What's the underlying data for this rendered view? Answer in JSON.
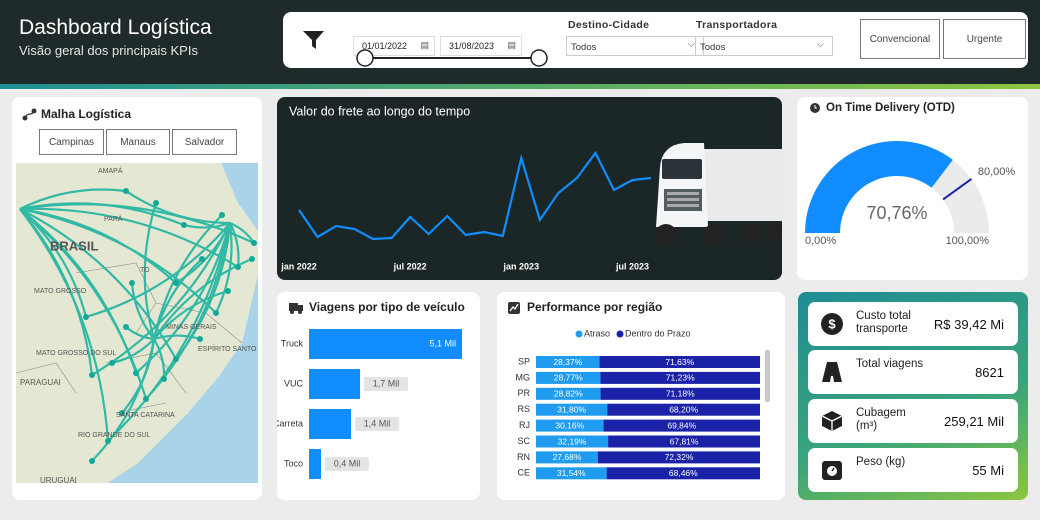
{
  "header": {
    "title": "Dashboard Logística",
    "subtitle": "Visão geral dos principais KPIs"
  },
  "filters": {
    "date_start": "01/01/2022",
    "date_end": "31/08/2023",
    "destino_label": "Destino-Cidade",
    "destino_value": "Todos",
    "transportadora_label": "Transportadora",
    "transportadora_value": "Todos",
    "buttons": [
      "Convencional",
      "Urgente"
    ]
  },
  "map": {
    "title": "Malha Logística",
    "buttons": [
      "Campinas",
      "Manaus",
      "Salvador"
    ],
    "labels": [
      "AMAPÁ",
      "PARÁ",
      "BRASIL",
      "TO",
      "MATO GROSSO",
      "MINAS GERAIS",
      "ESPÍRITO SANTO",
      "MATO GROSSO DO SUL",
      "PARAGUAI",
      "SANTA CATARINA",
      "RIO GRANDE DO SUL",
      "URUGUAI"
    ]
  },
  "chart_data": [
    {
      "type": "line",
      "title": "Valor do frete ao longo do tempo",
      "color": "#118dff",
      "categories": [
        "jan 2022",
        null,
        null,
        null,
        null,
        null,
        "jul 2022",
        null,
        null,
        null,
        null,
        null,
        "jan 2023",
        null,
        null,
        null,
        null,
        null,
        "jul 2023",
        null
      ],
      "values": [
        70,
        43,
        54,
        51,
        41,
        42,
        63,
        46,
        64,
        45,
        48,
        44,
        122,
        60,
        87,
        102,
        127,
        90,
        100,
        102
      ]
    },
    {
      "type": "bar",
      "title": "Viagens por tipo de veículo",
      "color": "#118dff",
      "orientation": "horizontal",
      "categories": [
        "Truck",
        "VUC",
        "Carreta",
        "Toco"
      ],
      "values": [
        5100,
        1700,
        1400,
        400
      ],
      "value_labels": [
        "5,1 Mil",
        "1,7 Mil",
        "1,4 Mil",
        "0,4 Mil"
      ]
    },
    {
      "type": "stacked_bar",
      "title": "Performance por região",
      "orientation": "horizontal",
      "categories": [
        "SP",
        "MG",
        "PR",
        "RS",
        "RJ",
        "SC",
        "RN",
        "CE"
      ],
      "series": [
        {
          "name": "Atraso",
          "color": "#1f9bf0",
          "values": [
            28.37,
            28.77,
            28.82,
            31.8,
            30.16,
            32.19,
            27.68,
            31.54
          ],
          "value_labels": [
            "28,37%",
            "28,77%",
            "28,82%",
            "31,80%",
            "30,16%",
            "32,19%",
            "27,68%",
            "31,54%"
          ]
        },
        {
          "name": "Dentro do Prazo",
          "color": "#1a22a8",
          "values": [
            71.63,
            71.23,
            71.18,
            68.2,
            69.84,
            67.81,
            72.32,
            68.46
          ],
          "value_labels": [
            "71,63%",
            "71,23%",
            "71,18%",
            "68,20%",
            "69,84%",
            "67,81%",
            "72,32%",
            "68,46%"
          ]
        }
      ]
    },
    {
      "type": "gauge",
      "title": "On Time Delivery (OTD)",
      "color": "#118dff",
      "target_color": "#1a22a8",
      "value": 70.76,
      "value_label": "70,76%",
      "ylim": [
        0,
        100
      ],
      "ticks": [
        {
          "value": 0,
          "label": "0,00%"
        },
        {
          "value": 100,
          "label": "100,00%"
        }
      ],
      "target": {
        "value": 80,
        "label": "80,00%"
      }
    }
  ],
  "kpis": [
    {
      "label": "Custo total transporte",
      "value": "R$ 39,42 Mi"
    },
    {
      "label": "Total viagens",
      "value": "8621"
    },
    {
      "label": "Cubagem (m³)",
      "value": "259,21 Mil"
    },
    {
      "label": "Peso (kg)",
      "value": "55 Mi"
    }
  ]
}
